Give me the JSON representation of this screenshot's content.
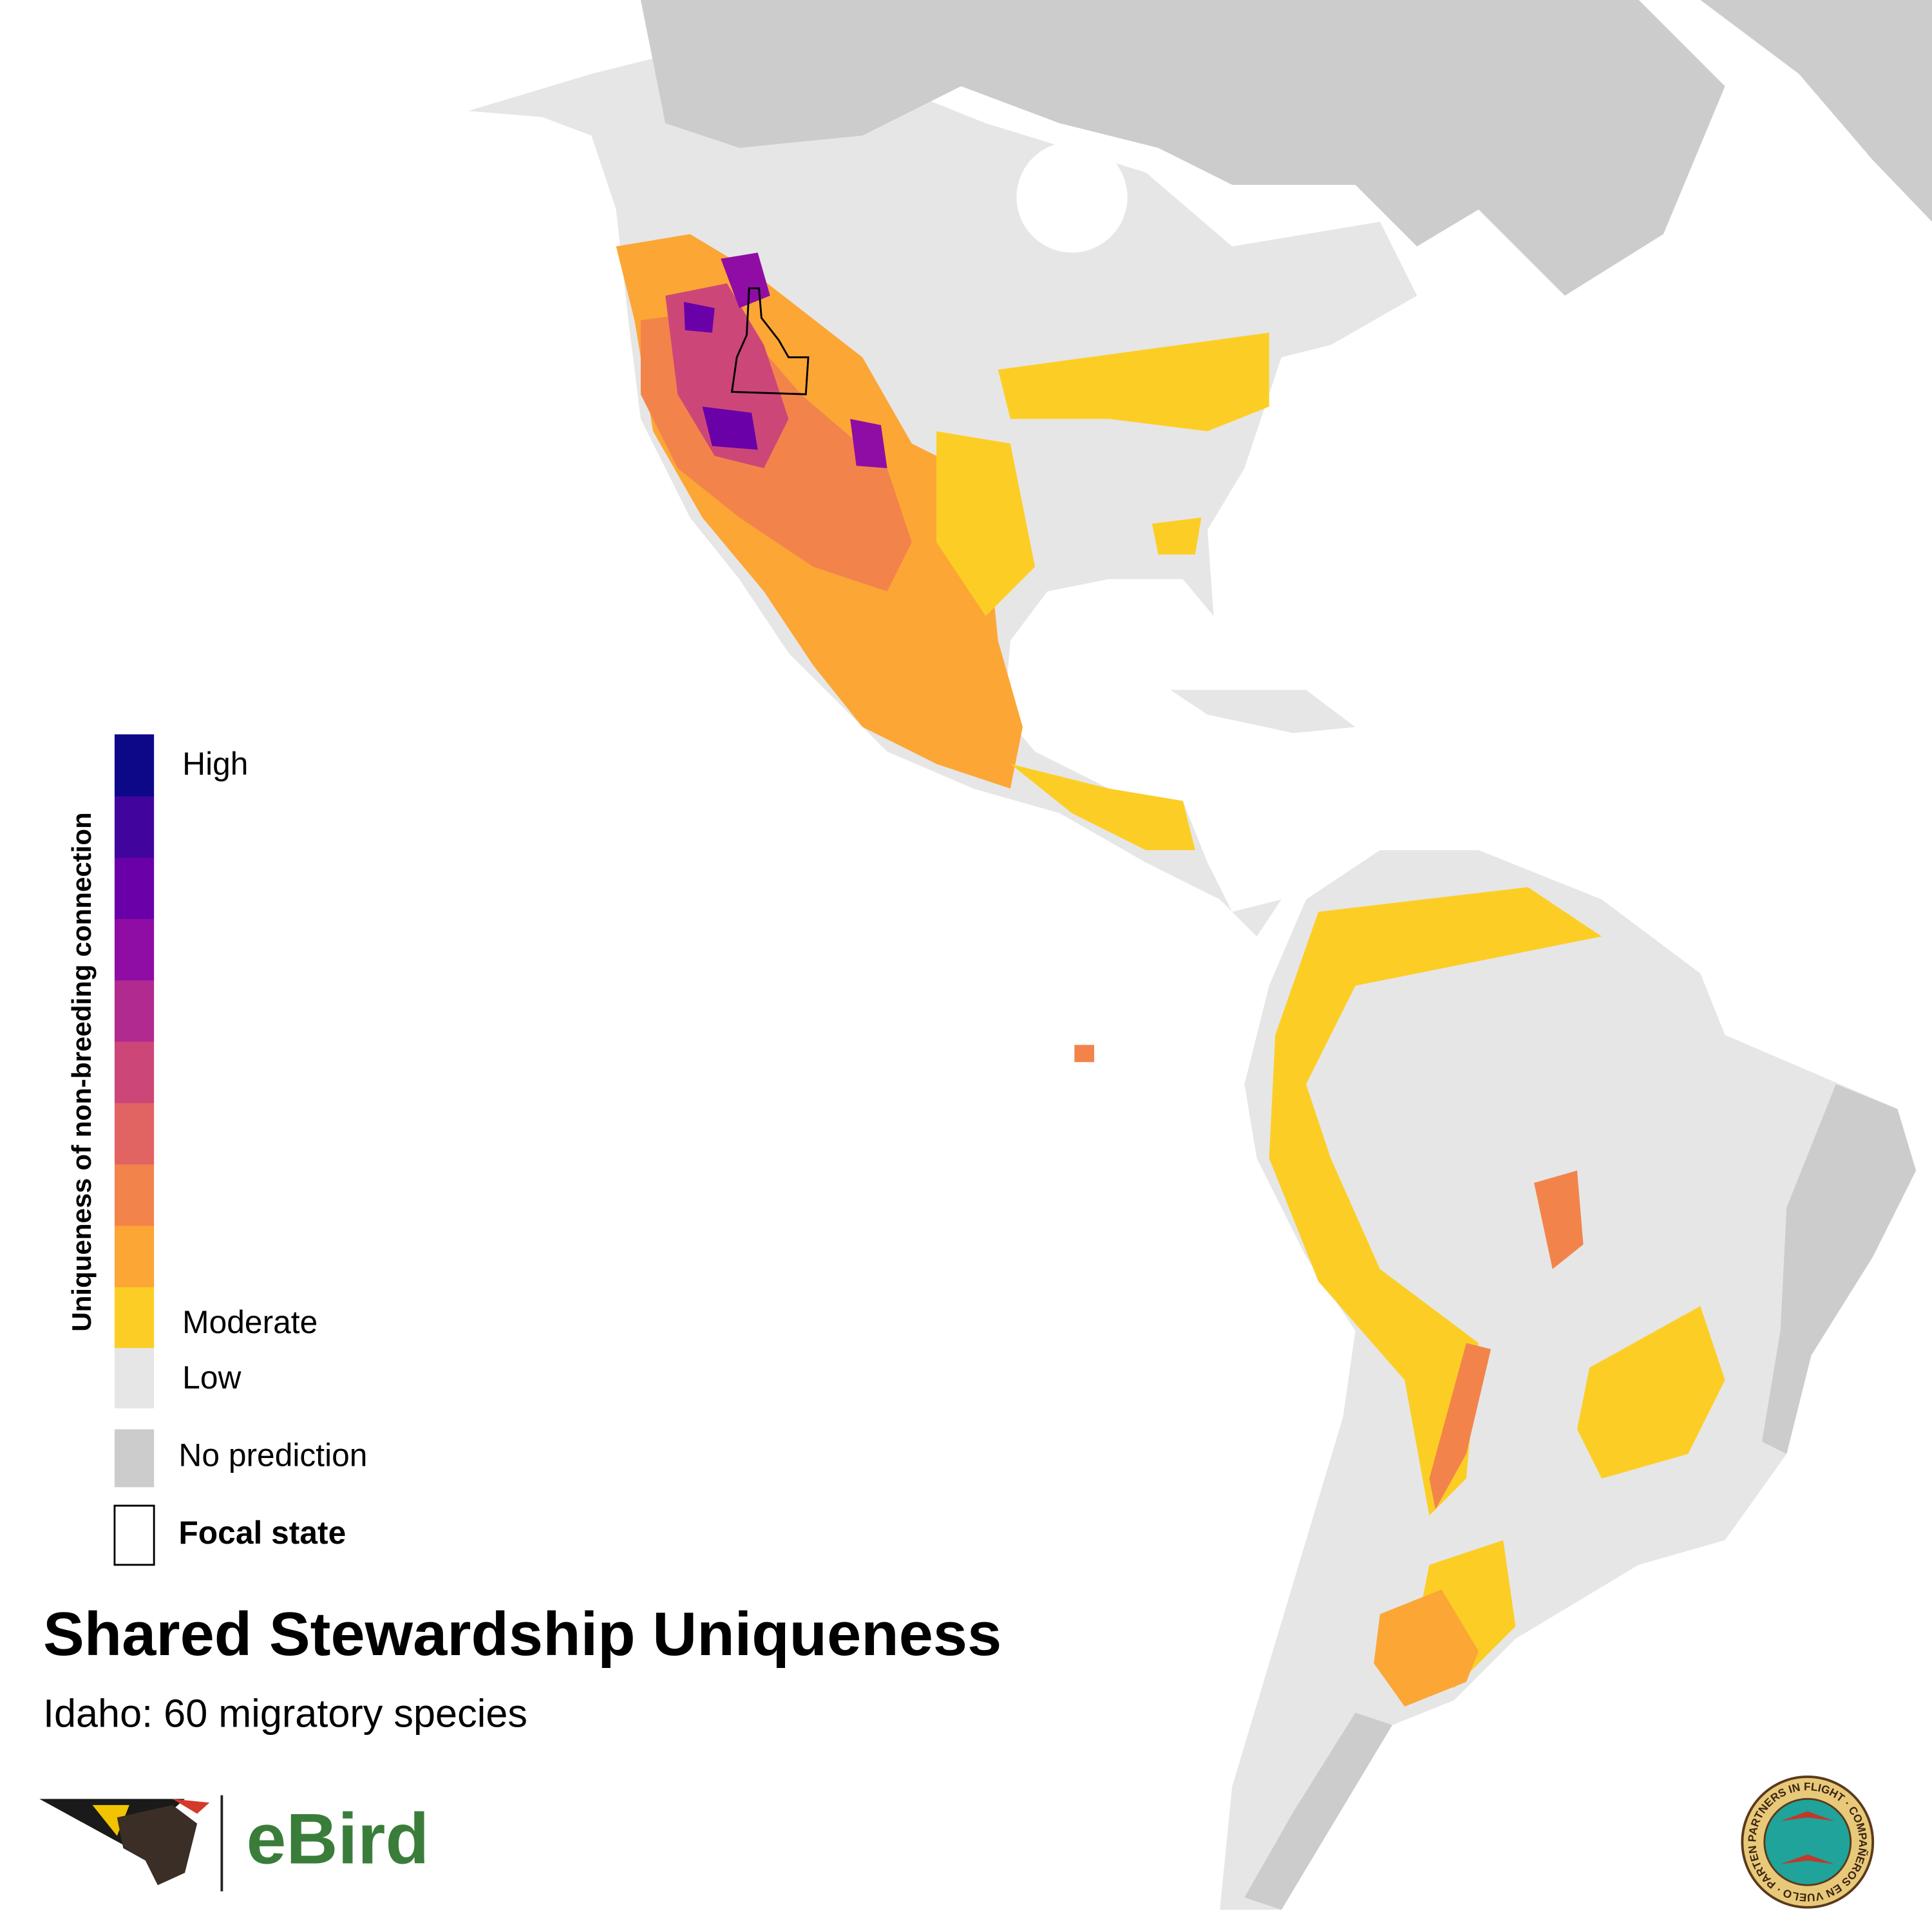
{
  "title": "Shared Stewardship Uniqueness",
  "subtitle": "Idaho: 60 migratory species",
  "legend": {
    "title": "Uniqueness of non-breeding connection",
    "colors": [
      "#0d0887",
      "#41049d",
      "#6a00a8",
      "#8f0da4",
      "#b12a90",
      "#cc4778",
      "#e16462",
      "#f2844b",
      "#fca636",
      "#fcce25"
    ],
    "high": "High",
    "moderate": "Moderate",
    "low": {
      "label": "Low",
      "color": "#e6e6e6"
    },
    "no_prediction": {
      "label": "No prediction",
      "color": "#cccccc"
    },
    "focal_state": {
      "label": "Focal state"
    }
  },
  "logos": {
    "ebird": "eBird",
    "pif": "PARTNERS IN FLIGHT · COMPAÑEROS EN VUELO · PARTENAIRES D'ENVOL ·"
  }
}
